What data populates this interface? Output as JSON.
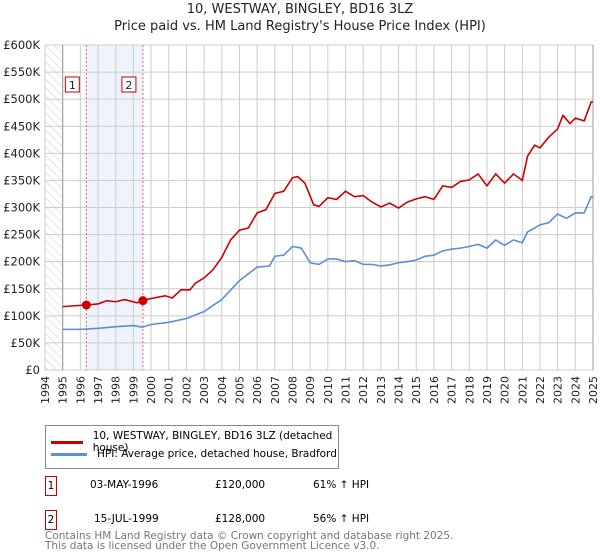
{
  "chart_data": {
    "type": "line",
    "title": "10, WESTWAY, BINGLEY, BD16 3LZ",
    "subtitle": "Price paid vs. HM Land Registry's House Price Index (HPI)",
    "xlim": [
      1994,
      2025
    ],
    "ylim": [
      0,
      600000
    ],
    "x_ticks": [
      "1994",
      "1995",
      "1996",
      "1997",
      "1998",
      "1999",
      "2000",
      "2001",
      "2002",
      "2003",
      "2004",
      "2005",
      "2006",
      "2007",
      "2008",
      "2009",
      "2010",
      "2011",
      "2012",
      "2013",
      "2014",
      "2015",
      "2016",
      "2017",
      "2018",
      "2019",
      "2020",
      "2021",
      "2022",
      "2023",
      "2024",
      "2025"
    ],
    "y_ticks": [
      {
        "v": 0,
        "label": "£0"
      },
      {
        "v": 50000,
        "label": "£50K"
      },
      {
        "v": 100000,
        "label": "£100K"
      },
      {
        "v": 150000,
        "label": "£150K"
      },
      {
        "v": 200000,
        "label": "£200K"
      },
      {
        "v": 250000,
        "label": "£250K"
      },
      {
        "v": 300000,
        "label": "£300K"
      },
      {
        "v": 350000,
        "label": "£350K"
      },
      {
        "v": 400000,
        "label": "£400K"
      },
      {
        "v": 450000,
        "label": "£450K"
      },
      {
        "v": 500000,
        "label": "£500K"
      },
      {
        "v": 550000,
        "label": "£550K"
      },
      {
        "v": 600000,
        "label": "£600K"
      }
    ],
    "grid": true,
    "series": [
      {
        "name": "10, WESTWAY, BINGLEY, BD16 3LZ (detached house)",
        "color": "#cc0000",
        "x": [
          1995,
          1996.3,
          1997,
          1997.5,
          1998,
          1998.5,
          1999.2,
          1999.5,
          2000,
          2000.8,
          2001.2,
          2001.7,
          2002.2,
          2002.5,
          2003,
          2003.5,
          2004,
          2004.5,
          2005,
          2005.5,
          2006,
          2006.5,
          2007,
          2007.5,
          2008,
          2008.3,
          2008.7,
          2009.2,
          2009.5,
          2010,
          2010.5,
          2011,
          2011.5,
          2012,
          2012.5,
          2013,
          2013.5,
          2014,
          2014.5,
          2015,
          2015.5,
          2016,
          2016.5,
          2017,
          2017.5,
          2018,
          2018.5,
          2019,
          2019.5,
          2020,
          2020.5,
          2021,
          2021.3,
          2021.7,
          2022,
          2022.5,
          2023,
          2023.3,
          2023.7,
          2024,
          2024.5,
          2024.9,
          2025
        ],
        "y": [
          117000,
          120000,
          122000,
          128000,
          126000,
          130000,
          124000,
          128000,
          132000,
          137000,
          133000,
          148000,
          148000,
          160000,
          170000,
          185000,
          208000,
          240000,
          258000,
          262000,
          290000,
          296000,
          326000,
          330000,
          355000,
          357000,
          345000,
          305000,
          302000,
          318000,
          315000,
          330000,
          320000,
          322000,
          310000,
          301000,
          308000,
          299000,
          310000,
          316000,
          320000,
          315000,
          340000,
          337000,
          348000,
          351000,
          362000,
          340000,
          362000,
          345000,
          362000,
          350000,
          395000,
          415000,
          410000,
          430000,
          445000,
          470000,
          455000,
          465000,
          460000,
          495000,
          495000
        ]
      },
      {
        "name": "HPI: Average price, detached house, Bradford",
        "color": "#5b8fd6",
        "x": [
          1995,
          1996,
          1997,
          1998,
          1999,
          1999.5,
          2000,
          2001,
          2002,
          2003,
          2004,
          2005,
          2006,
          2006.7,
          2007,
          2007.5,
          2008,
          2008.5,
          2009,
          2009.5,
          2010,
          2010.5,
          2011,
          2011.5,
          2012,
          2012.5,
          2013,
          2013.5,
          2014,
          2014.5,
          2015,
          2015.5,
          2016,
          2016.5,
          2017,
          2017.5,
          2018,
          2018.5,
          2019,
          2019.5,
          2020,
          2020.5,
          2021,
          2021.3,
          2021.7,
          2022,
          2022.5,
          2023,
          2023.5,
          2024,
          2024.5,
          2024.9,
          2025
        ],
        "y": [
          75000,
          75000,
          77000,
          80000,
          82000,
          79000,
          84000,
          88000,
          95000,
          108000,
          130000,
          165000,
          190000,
          192000,
          210000,
          212000,
          228000,
          225000,
          198000,
          195000,
          205000,
          205000,
          200000,
          202000,
          195000,
          195000,
          192000,
          194000,
          198000,
          200000,
          203000,
          210000,
          212000,
          220000,
          223000,
          225000,
          228000,
          232000,
          225000,
          240000,
          230000,
          240000,
          235000,
          255000,
          262000,
          268000,
          272000,
          288000,
          280000,
          290000,
          290000,
          320000,
          318000
        ]
      }
    ],
    "annotations": [
      {
        "label": "1",
        "x": 1996.34,
        "y": 120000
      },
      {
        "label": "2",
        "x": 1999.54,
        "y": 128000
      }
    ],
    "legend_position": "below"
  },
  "transactions": [
    {
      "num": "1",
      "date": "03-MAY-1996",
      "price": "£120,000",
      "hpi": "61% ↑ HPI"
    },
    {
      "num": "2",
      "date": "15-JUL-1999",
      "price": "£128,000",
      "hpi": "56% ↑ HPI"
    }
  ],
  "footer": {
    "line1": "Contains HM Land Registry data © Crown copyright and database right 2025.",
    "line2": "This data is licensed under the Open Government Licence v3.0."
  }
}
